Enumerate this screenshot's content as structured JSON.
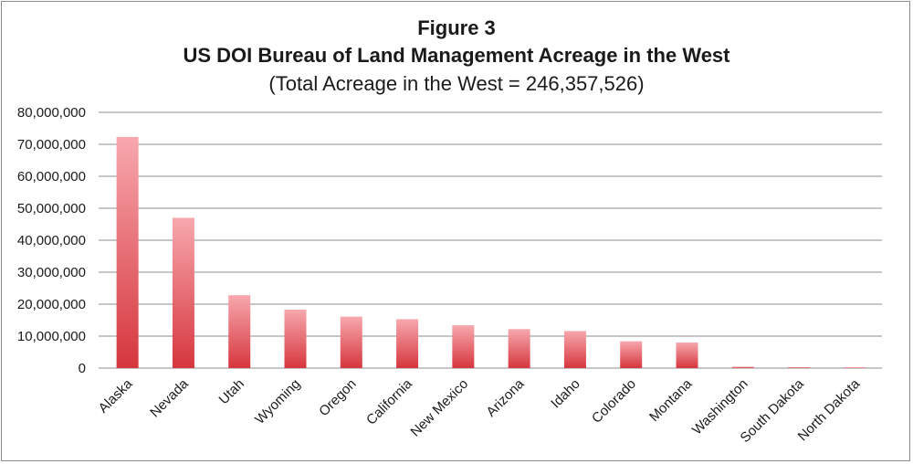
{
  "chart_data": {
    "type": "bar",
    "title": "Figure 3",
    "subtitle": "US DOI Bureau of Land Management Acreage in the West",
    "note": "(Total Acreage in the West = 246,357,526)",
    "xlabel": "",
    "ylabel": "",
    "categories": [
      "Alaska",
      "Nevada",
      "Utah",
      "Wyoming",
      "Oregon",
      "California",
      "New Mexico",
      "Arizona",
      "Idaho",
      "Colorado",
      "Montana",
      "Washington",
      "South Dakota",
      "North Dakota"
    ],
    "values": [
      72300000,
      47000000,
      22800000,
      18300000,
      16100000,
      15300000,
      13400000,
      12200000,
      11600000,
      8400000,
      8000000,
      430000,
      275000,
      59000
    ],
    "ylim": [
      0,
      80000000
    ],
    "yticks": [
      "0",
      "10,000,000",
      "20,000,000",
      "30,000,000",
      "40,000,000",
      "50,000,000",
      "60,000,000",
      "70,000,000",
      "80,000,000"
    ],
    "ytick_values": [
      0,
      10000000,
      20000000,
      30000000,
      40000000,
      50000000,
      60000000,
      70000000,
      80000000
    ],
    "grid": true,
    "legend": "none",
    "colors": {
      "bar_top": "#f7a8ae",
      "bar_bottom": "#d6363d",
      "grid": "#8c8c8c"
    }
  }
}
